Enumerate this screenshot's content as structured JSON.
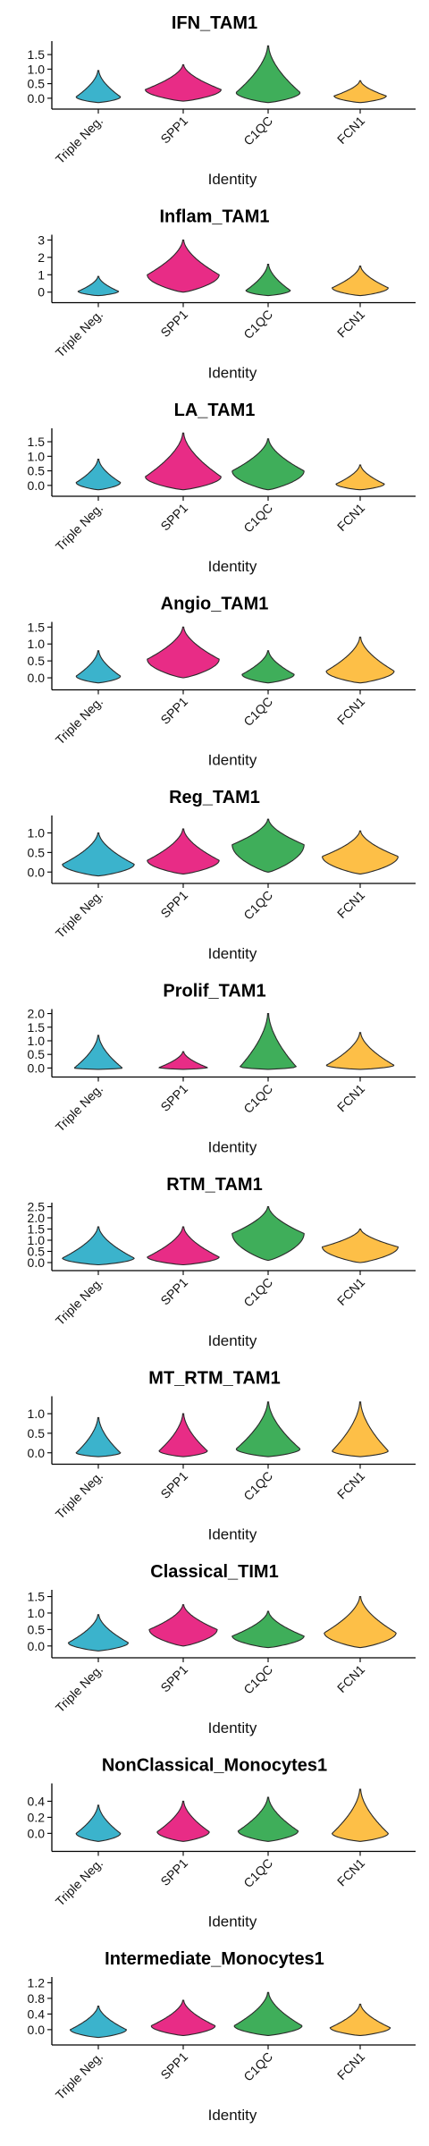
{
  "colors": {
    "Triple Neg.": "#3bb3cc",
    "SPP1": "#e82c86",
    "C1QC": "#3fae5a",
    "FCN1": "#fdbf47"
  },
  "chart_data": [
    {
      "type": "violin",
      "title": "IFN_TAM1",
      "xlabel": "Identity",
      "categories": [
        "Triple Neg.",
        "SPP1",
        "C1QC",
        "FCN1"
      ],
      "yticks": [
        "0.0",
        "0.5",
        "1.0",
        "1.5"
      ],
      "ylim": [
        -0.25,
        1.9
      ],
      "violins": [
        {
          "min": -0.15,
          "max": 0.95,
          "median": 0.05,
          "width": 0.55
        },
        {
          "min": -0.1,
          "max": 1.15,
          "median": 0.3,
          "width": 0.95
        },
        {
          "min": -0.15,
          "max": 1.8,
          "median": 0.2,
          "width": 0.8
        },
        {
          "min": -0.15,
          "max": 0.6,
          "median": 0.08,
          "width": 0.65
        }
      ]
    },
    {
      "type": "violin",
      "title": "Inflam_TAM1",
      "xlabel": "Identity",
      "categories": [
        "Triple Neg.",
        "SPP1",
        "C1QC",
        "FCN1"
      ],
      "yticks": [
        "0",
        "1",
        "2",
        "3"
      ],
      "ylim": [
        -0.4,
        3.2
      ],
      "violins": [
        {
          "min": -0.2,
          "max": 0.9,
          "median": 0.05,
          "width": 0.5
        },
        {
          "min": 0.0,
          "max": 3.0,
          "median": 1.0,
          "width": 0.9
        },
        {
          "min": -0.2,
          "max": 1.6,
          "median": 0.1,
          "width": 0.55
        },
        {
          "min": -0.2,
          "max": 1.5,
          "median": 0.25,
          "width": 0.7
        }
      ]
    },
    {
      "type": "violin",
      "title": "LA_TAM1",
      "xlabel": "Identity",
      "categories": [
        "Triple Neg.",
        "SPP1",
        "C1QC",
        "FCN1"
      ],
      "yticks": [
        "0.0",
        "0.5",
        "1.0",
        "1.5"
      ],
      "ylim": [
        -0.25,
        1.9
      ],
      "violins": [
        {
          "min": -0.15,
          "max": 0.9,
          "median": 0.1,
          "width": 0.55
        },
        {
          "min": -0.15,
          "max": 1.8,
          "median": 0.3,
          "width": 0.95
        },
        {
          "min": -0.15,
          "max": 1.6,
          "median": 0.5,
          "width": 0.9
        },
        {
          "min": -0.15,
          "max": 0.7,
          "median": 0.05,
          "width": 0.6
        }
      ]
    },
    {
      "type": "violin",
      "title": "Angio_TAM1",
      "xlabel": "Identity",
      "categories": [
        "Triple Neg.",
        "SPP1",
        "C1QC",
        "FCN1"
      ],
      "yticks": [
        "0.0",
        "0.5",
        "1.0",
        "1.5"
      ],
      "ylim": [
        -0.25,
        1.6
      ],
      "violins": [
        {
          "min": -0.15,
          "max": 0.8,
          "median": 0.05,
          "width": 0.55
        },
        {
          "min": 0.0,
          "max": 1.5,
          "median": 0.55,
          "width": 0.9
        },
        {
          "min": -0.15,
          "max": 0.8,
          "median": 0.1,
          "width": 0.65
        },
        {
          "min": -0.15,
          "max": 1.2,
          "median": 0.2,
          "width": 0.85
        }
      ]
    },
    {
      "type": "violin",
      "title": "Reg_TAM1",
      "xlabel": "Identity",
      "categories": [
        "Triple Neg.",
        "SPP1",
        "C1QC",
        "FCN1"
      ],
      "yticks": [
        "0.0",
        "0.5",
        "1.0"
      ],
      "ylim": [
        -0.2,
        1.4
      ],
      "violins": [
        {
          "min": -0.1,
          "max": 1.0,
          "median": 0.2,
          "width": 0.9
        },
        {
          "min": -0.05,
          "max": 1.1,
          "median": 0.3,
          "width": 0.9
        },
        {
          "min": 0.0,
          "max": 1.35,
          "median": 0.7,
          "width": 0.9
        },
        {
          "min": -0.05,
          "max": 1.05,
          "median": 0.4,
          "width": 0.95
        }
      ]
    },
    {
      "type": "violin",
      "title": "Prolif_TAM1",
      "xlabel": "Identity",
      "categories": [
        "Triple Neg.",
        "SPP1",
        "C1QC",
        "FCN1"
      ],
      "yticks": [
        "0.0",
        "0.5",
        "1.0",
        "1.5",
        "2.0"
      ],
      "ylim": [
        -0.2,
        2.1
      ],
      "violins": [
        {
          "min": -0.05,
          "max": 1.2,
          "median": 0.0,
          "width": 0.6
        },
        {
          "min": -0.05,
          "max": 0.6,
          "median": 0.02,
          "width": 0.6
        },
        {
          "min": -0.05,
          "max": 2.0,
          "median": 0.05,
          "width": 0.7
        },
        {
          "min": -0.05,
          "max": 1.3,
          "median": 0.1,
          "width": 0.85
        }
      ]
    },
    {
      "type": "violin",
      "title": "RTM_TAM1",
      "xlabel": "Identity",
      "categories": [
        "Triple Neg.",
        "SPP1",
        "C1QC",
        "FCN1"
      ],
      "yticks": [
        "0.0",
        "0.5",
        "1.0",
        "1.5",
        "2.0",
        "2.5"
      ],
      "ylim": [
        -0.2,
        2.6
      ],
      "violins": [
        {
          "min": -0.1,
          "max": 1.6,
          "median": 0.2,
          "width": 0.9
        },
        {
          "min": -0.1,
          "max": 1.6,
          "median": 0.25,
          "width": 0.9
        },
        {
          "min": 0.1,
          "max": 2.5,
          "median": 1.3,
          "width": 0.9
        },
        {
          "min": 0.0,
          "max": 1.5,
          "median": 0.7,
          "width": 0.95
        }
      ]
    },
    {
      "type": "violin",
      "title": "MT_RTM_TAM1",
      "xlabel": "Identity",
      "categories": [
        "Triple Neg.",
        "SPP1",
        "C1QC",
        "FCN1"
      ],
      "yticks": [
        "0.0",
        "0.5",
        "1.0"
      ],
      "ylim": [
        -0.2,
        1.4
      ],
      "violins": [
        {
          "min": -0.1,
          "max": 0.9,
          "median": 0.0,
          "width": 0.55
        },
        {
          "min": -0.1,
          "max": 1.0,
          "median": 0.05,
          "width": 0.6
        },
        {
          "min": -0.1,
          "max": 1.3,
          "median": 0.1,
          "width": 0.8
        },
        {
          "min": -0.1,
          "max": 1.3,
          "median": 0.05,
          "width": 0.7
        }
      ]
    },
    {
      "type": "violin",
      "title": "Classical_TIM1",
      "xlabel": "Identity",
      "categories": [
        "Triple Neg.",
        "SPP1",
        "C1QC",
        "FCN1"
      ],
      "yticks": [
        "0.0",
        "0.5",
        "1.0",
        "1.5"
      ],
      "ylim": [
        -0.25,
        1.65
      ],
      "violins": [
        {
          "min": -0.15,
          "max": 0.95,
          "median": 0.1,
          "width": 0.75
        },
        {
          "min": 0.0,
          "max": 1.25,
          "median": 0.5,
          "width": 0.85
        },
        {
          "min": -0.05,
          "max": 1.05,
          "median": 0.3,
          "width": 0.9
        },
        {
          "min": -0.05,
          "max": 1.5,
          "median": 0.4,
          "width": 0.9
        }
      ]
    },
    {
      "type": "violin",
      "title": "NonClassical_Monocytes1",
      "xlabel": "Identity",
      "categories": [
        "Triple Neg.",
        "SPP1",
        "C1QC",
        "FCN1"
      ],
      "yticks": [
        "0.0",
        "0.2",
        "0.4"
      ],
      "ylim": [
        -0.18,
        0.6
      ],
      "violins": [
        {
          "min": -0.1,
          "max": 0.35,
          "median": 0.0,
          "width": 0.55
        },
        {
          "min": -0.1,
          "max": 0.4,
          "median": 0.02,
          "width": 0.65
        },
        {
          "min": -0.1,
          "max": 0.45,
          "median": 0.03,
          "width": 0.75
        },
        {
          "min": -0.1,
          "max": 0.55,
          "median": 0.0,
          "width": 0.7
        }
      ]
    },
    {
      "type": "violin",
      "title": "Intermediate_Monocytes1",
      "xlabel": "Identity",
      "categories": [
        "Triple Neg.",
        "SPP1",
        "C1QC",
        "FCN1"
      ],
      "yticks": [
        "0.0",
        "0.4",
        "0.8",
        "1.2"
      ],
      "ylim": [
        -0.3,
        1.3
      ],
      "violins": [
        {
          "min": -0.2,
          "max": 0.6,
          "median": 0.0,
          "width": 0.7
        },
        {
          "min": -0.15,
          "max": 0.75,
          "median": 0.1,
          "width": 0.8
        },
        {
          "min": -0.15,
          "max": 0.95,
          "median": 0.1,
          "width": 0.85
        },
        {
          "min": -0.15,
          "max": 0.65,
          "median": 0.05,
          "width": 0.75
        }
      ]
    }
  ]
}
